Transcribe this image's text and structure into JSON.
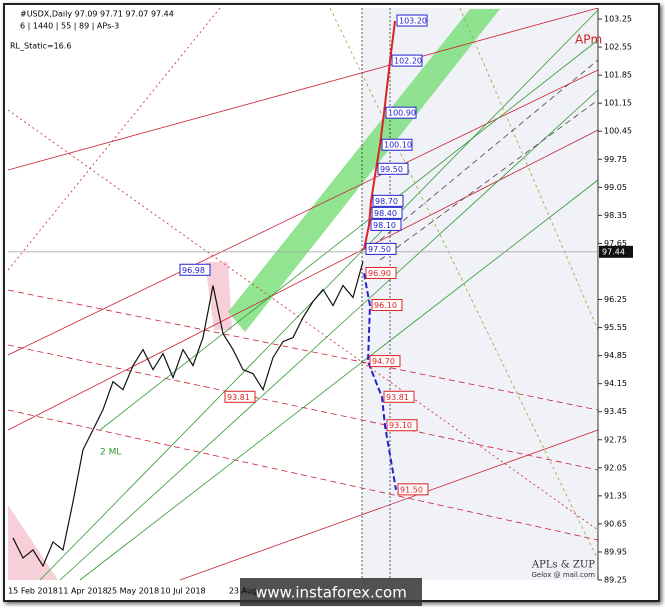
{
  "chart_data": {
    "type": "line",
    "title": "#USDX,Daily  97.09 97.71 97.07 97.44",
    "subtitle": "6 | 1440 | 55 | 89 | APs-3",
    "indicator": "RL_Static=16.6",
    "categories": [
      null,
      null,
      "15 Feb 2018",
      null,
      null,
      null,
      null,
      "11 Apr 2018",
      null,
      null,
      null,
      null,
      "25 May 2018",
      null,
      null,
      null,
      null,
      "10 Jul 2018",
      null,
      null,
      null,
      null,
      null,
      "23 Aug",
      null,
      null,
      null,
      null,
      null,
      null,
      null,
      null,
      null,
      null,
      null,
      null
    ],
    "series": [
      {
        "name": "USDX",
        "color": "#111111",
        "values": [
          90.3,
          89.8,
          90.0,
          89.6,
          90.2,
          90.0,
          91.2,
          92.5,
          93.0,
          93.5,
          94.2,
          94.0,
          94.6,
          95.0,
          94.5,
          94.9,
          94.3,
          95.0,
          94.6,
          95.3,
          96.6,
          95.4,
          95.0,
          94.5,
          94.4,
          94.0,
          94.8,
          95.2,
          95.3,
          95.8,
          96.2,
          96.5,
          96.1,
          96.6,
          96.3,
          97.2
        ]
      }
    ],
    "ylim": [
      89.25,
      103.5
    ],
    "yticks": [
      103.25,
      102.55,
      101.85,
      101.15,
      100.45,
      99.75,
      99.05,
      98.35,
      97.65,
      96.25,
      95.55,
      94.85,
      94.15,
      93.45,
      92.75,
      92.05,
      91.35,
      90.65,
      89.95,
      89.25
    ],
    "last_price": 97.44,
    "forecast_up": [
      {
        "value": 97.5,
        "label": "97.50"
      },
      {
        "value": 98.1,
        "label": "98.10"
      },
      {
        "value": 98.4,
        "label": "98.40"
      },
      {
        "value": 98.7,
        "label": "98.70"
      },
      {
        "value": 99.5,
        "label": "99.50"
      },
      {
        "value": 100.1,
        "label": "100.10"
      },
      {
        "value": 100.9,
        "label": "100.90"
      },
      {
        "value": 102.2,
        "label": "102.20"
      },
      {
        "value": 103.2,
        "label": "103.20"
      }
    ],
    "forecast_down": [
      {
        "value": 96.9,
        "label": "96.90"
      },
      {
        "value": 96.1,
        "label": "96.10"
      },
      {
        "value": 94.7,
        "label": "94.70"
      },
      {
        "value": 93.81,
        "label": "93.81"
      },
      {
        "value": 93.1,
        "label": "93.10"
      },
      {
        "value": 91.5,
        "label": "91.50"
      }
    ],
    "marks": [
      {
        "value": 96.98,
        "label": "96.98"
      },
      {
        "value": 93.81,
        "label": "93.81"
      }
    ],
    "annotations": {
      "apm": "APm",
      "ml": "2 ML",
      "brand": "APLs & ZUP",
      "author": "Gelox @ mail.com",
      "watermark": "www.instaforex.com"
    }
  }
}
